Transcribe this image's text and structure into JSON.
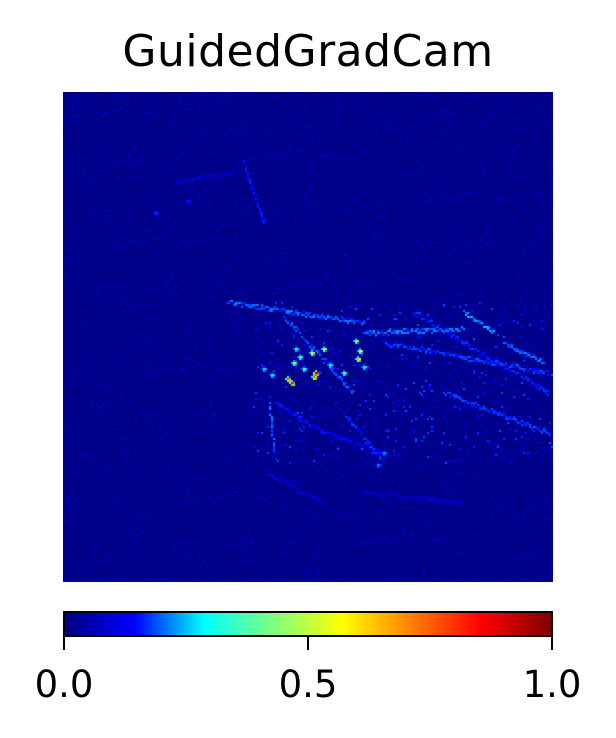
{
  "title": "GuidedGradCam",
  "image": {
    "description_name": "guided-gradcam-saliency-map",
    "colormap": "jet",
    "background_color": "#00007f"
  },
  "colorbar": {
    "min": 0.0,
    "max": 1.0,
    "colormap": "jet",
    "colors": [
      "#00007f",
      "#0000ff",
      "#00ffff",
      "#7fff7f",
      "#ffff00",
      "#ff7f00",
      "#ff0000",
      "#7f0000"
    ],
    "ticks": [
      {
        "value": 0.0,
        "label": "0.0"
      },
      {
        "value": 0.5,
        "label": "0.5"
      },
      {
        "value": 1.0,
        "label": "1.0"
      }
    ]
  }
}
